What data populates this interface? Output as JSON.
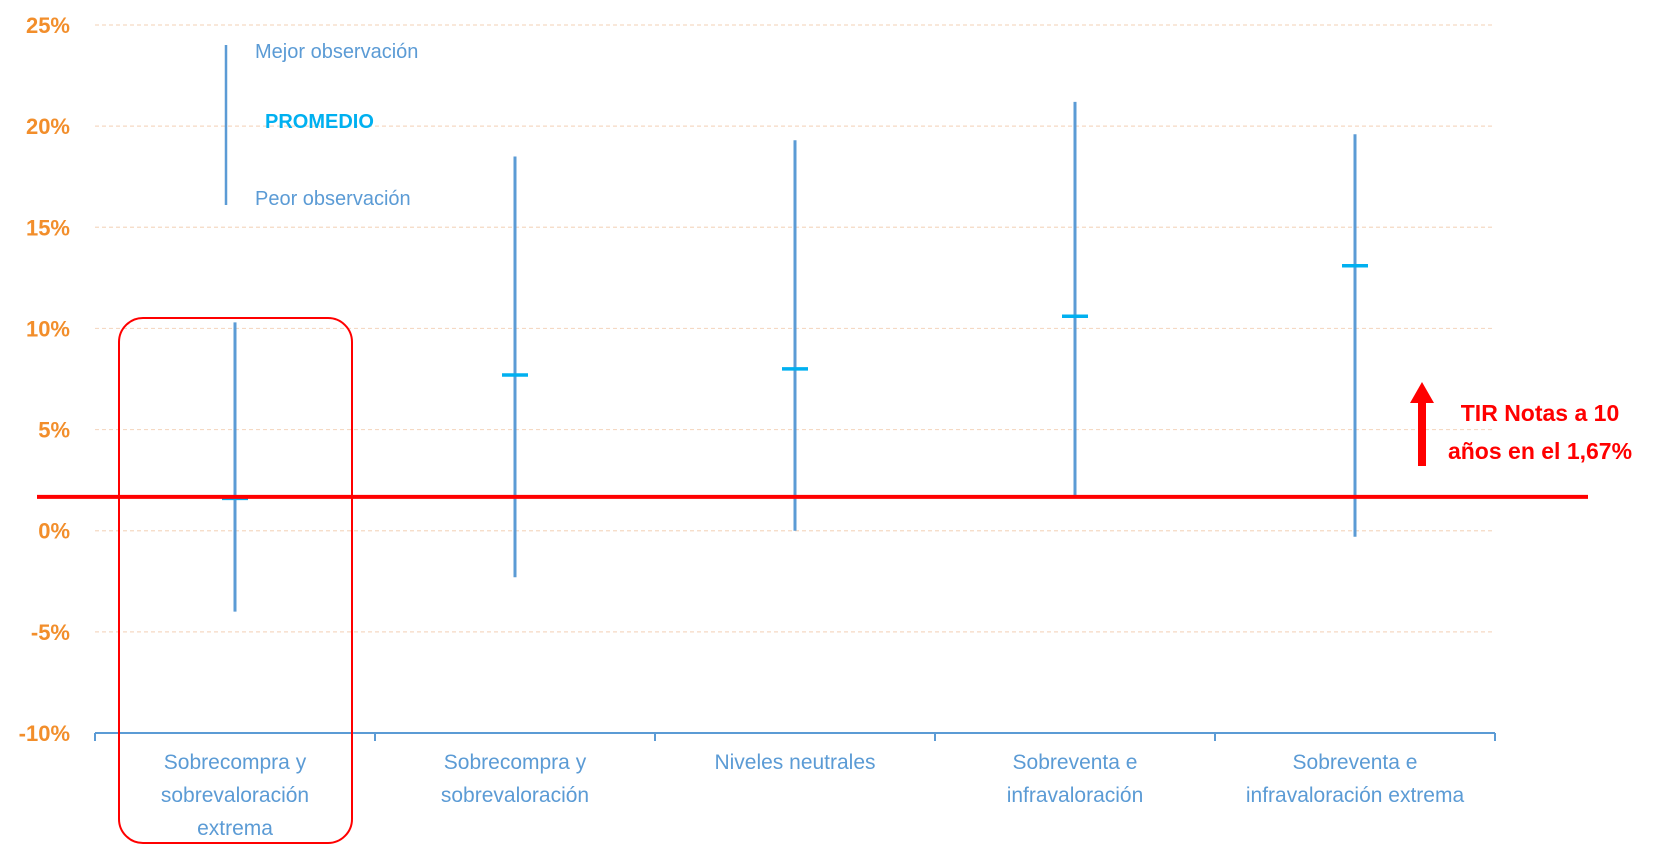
{
  "chart_data": {
    "type": "high-low-average",
    "ylim": [
      -10,
      25
    ],
    "y_ticks": [
      "25%",
      "20%",
      "15%",
      "10%",
      "5%",
      "0%",
      "-5%",
      "-10%"
    ],
    "y_tick_values": [
      25,
      20,
      15,
      10,
      5,
      0,
      -5,
      -10
    ],
    "categories": [
      [
        "Sobrecompra y",
        "sobrevaloración",
        "extrema"
      ],
      [
        "Sobrecompra y",
        "sobrevaloración"
      ],
      [
        "Niveles neutrales"
      ],
      [
        "Sobreventa e",
        "infravaloración"
      ],
      [
        "Sobreventa e",
        "infravaloración extrema"
      ]
    ],
    "series": [
      {
        "name": "Mejor observación",
        "values": [
          10.3,
          18.5,
          19.3,
          21.2,
          19.6
        ]
      },
      {
        "name": "PROMEDIO",
        "values": [
          1.6,
          7.7,
          8.0,
          10.6,
          13.1
        ]
      },
      {
        "name": "Peor observación",
        "values": [
          -4.0,
          -2.3,
          0.0,
          1.6,
          -0.3
        ]
      }
    ],
    "legend": {
      "top": "Mejor observación",
      "middle": "PROMEDIO",
      "bottom": "Peor observación",
      "position": "top-left"
    },
    "reference_line": {
      "value": 1.67
    },
    "annotation": {
      "lines": [
        "TIR Notas a 10",
        "años en el 1,67%"
      ]
    },
    "highlighted_category": 0,
    "colors": {
      "range": "#5b9bd5",
      "average": "#00b0f0",
      "reference": "#ff0000",
      "tick_labels": "#f28e2b",
      "grid": "#f5d9c3",
      "axis": "#5b9bd5"
    }
  }
}
